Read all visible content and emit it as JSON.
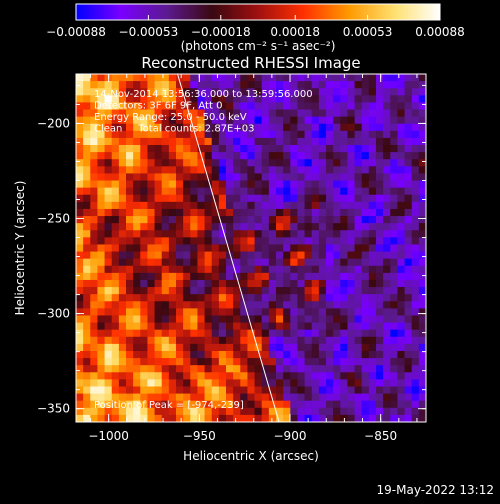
{
  "chart_data": {
    "type": "heatmap",
    "title": "Reconstructed RHESSI Image",
    "xlabel": "Heliocentric X (arcsec)",
    "ylabel": "Heliocentric Y (arcsec)",
    "xlim": [
      -1018,
      -825
    ],
    "ylim": [
      -357,
      -174
    ],
    "x_ticks": [
      -1000,
      -950,
      -900,
      -850
    ],
    "y_ticks": [
      -350,
      -300,
      -250,
      -200
    ],
    "x_tick_labels": [
      "−1000",
      "−950",
      "−900",
      "−850"
    ],
    "y_tick_labels": [
      "−350",
      "−300",
      "−250",
      "−200"
    ],
    "limb_line": [
      [
        -962,
        -174
      ],
      [
        -906,
        -357
      ]
    ],
    "peak_position": [
      -974,
      -239
    ],
    "colorbar": {
      "range": [
        -0.00088,
        0.00088
      ],
      "tick_values": [
        -0.00088,
        -0.00053,
        -0.00018,
        0.00018,
        0.00053,
        0.00088
      ],
      "tick_labels": [
        "−0.00088",
        "−0.00053",
        "−0.00018",
        "0.00018",
        "0.00053",
        "0.00088"
      ],
      "unit_label": "(photons cm⁻² s⁻¹ asec⁻²)",
      "colors": [
        "#0000ff",
        "#7a00ff",
        "#5b1a8f",
        "#3a0810",
        "#a01010",
        "#ff3000",
        "#ff9a00",
        "#ffe070",
        "#ffffff"
      ]
    },
    "annotations": [
      "14-Nov-2014 13:56:36.000 to 13:59:56.000",
      "Detectors: 3F 6F 9F, Att 0",
      "Energy Range: 25.0 - 50.0 keV",
      "Clean     Total counts: 2.87E+03"
    ],
    "peak_label": "Position of Peak = [-974,-239]",
    "footer_timestamp": "19-May-2022 13:12"
  }
}
